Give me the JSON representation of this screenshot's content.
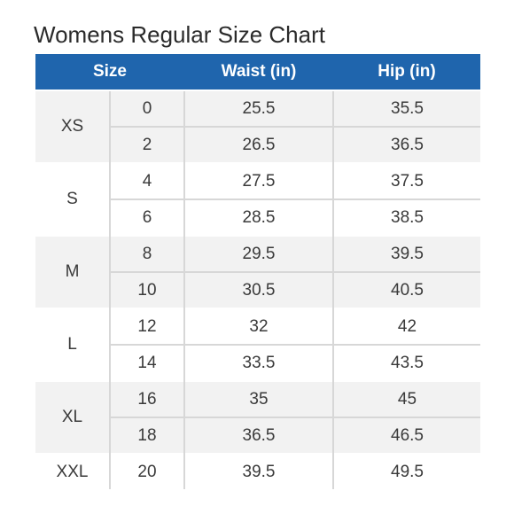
{
  "title": "Womens Regular Size Chart",
  "table": {
    "headers": {
      "size": "Size",
      "waist": "Waist (in)",
      "hip": "Hip (in)"
    },
    "header_color": "#1f65ad",
    "groups": [
      {
        "letter": "XS",
        "shaded": true,
        "rows": [
          {
            "size": "0",
            "waist": "25.5",
            "hip": "35.5"
          },
          {
            "size": "2",
            "waist": "26.5",
            "hip": "36.5"
          }
        ]
      },
      {
        "letter": "S",
        "shaded": false,
        "rows": [
          {
            "size": "4",
            "waist": "27.5",
            "hip": "37.5"
          },
          {
            "size": "6",
            "waist": "28.5",
            "hip": "38.5"
          }
        ]
      },
      {
        "letter": "M",
        "shaded": true,
        "rows": [
          {
            "size": "8",
            "waist": "29.5",
            "hip": "39.5"
          },
          {
            "size": "10",
            "waist": "30.5",
            "hip": "40.5"
          }
        ]
      },
      {
        "letter": "L",
        "shaded": false,
        "rows": [
          {
            "size": "12",
            "waist": "32",
            "hip": "42"
          },
          {
            "size": "14",
            "waist": "33.5",
            "hip": "43.5"
          }
        ]
      },
      {
        "letter": "XL",
        "shaded": true,
        "rows": [
          {
            "size": "16",
            "waist": "35",
            "hip": "45"
          },
          {
            "size": "18",
            "waist": "36.5",
            "hip": "46.5"
          }
        ]
      },
      {
        "letter": "XXL",
        "shaded": false,
        "rows": [
          {
            "size": "20",
            "waist": "39.5",
            "hip": "49.5"
          }
        ]
      }
    ]
  }
}
